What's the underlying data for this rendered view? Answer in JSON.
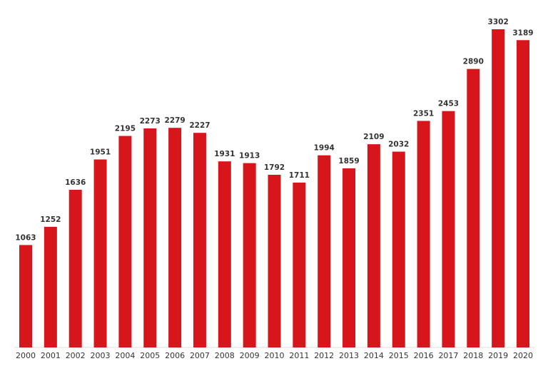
{
  "chart_data": {
    "type": "bar",
    "categories": [
      "2000",
      "2001",
      "2002",
      "2003",
      "2004",
      "2005",
      "2006",
      "2007",
      "2008",
      "2009",
      "2010",
      "2011",
      "2012",
      "2013",
      "2014",
      "2015",
      "2016",
      "2017",
      "2018",
      "2019",
      "2020"
    ],
    "values": [
      1063,
      1252,
      1636,
      1951,
      2195,
      2273,
      2279,
      2227,
      1931,
      1913,
      1792,
      1711,
      1994,
      1859,
      2109,
      2032,
      2351,
      2453,
      2890,
      3302,
      3189
    ],
    "color": "#d7161b"
  }
}
